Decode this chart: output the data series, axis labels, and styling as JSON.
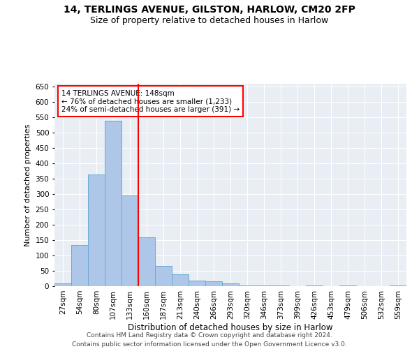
{
  "title1": "14, TERLINGS AVENUE, GILSTON, HARLOW, CM20 2FP",
  "title2": "Size of property relative to detached houses in Harlow",
  "xlabel": "Distribution of detached houses by size in Harlow",
  "ylabel": "Number of detached properties",
  "categories": [
    "27sqm",
    "54sqm",
    "80sqm",
    "107sqm",
    "133sqm",
    "160sqm",
    "187sqm",
    "213sqm",
    "240sqm",
    "266sqm",
    "293sqm",
    "320sqm",
    "346sqm",
    "373sqm",
    "399sqm",
    "426sqm",
    "453sqm",
    "479sqm",
    "506sqm",
    "532sqm",
    "559sqm"
  ],
  "values": [
    10,
    135,
    365,
    540,
    295,
    160,
    65,
    38,
    18,
    15,
    10,
    3,
    3,
    3,
    0,
    3,
    0,
    3,
    0,
    0,
    3
  ],
  "bar_color": "#aec6e8",
  "bar_edge_color": "#6aaad4",
  "vline_color": "red",
  "vline_x": 4.5,
  "annotation_text": "14 TERLINGS AVENUE: 148sqm\n← 76% of detached houses are smaller (1,233)\n24% of semi-detached houses are larger (391) →",
  "annotation_box_color": "white",
  "annotation_box_edge_color": "red",
  "ylim": [
    0,
    660
  ],
  "yticks": [
    0,
    50,
    100,
    150,
    200,
    250,
    300,
    350,
    400,
    450,
    500,
    550,
    600,
    650
  ],
  "background_color": "#e8eef4",
  "footer_text": "Contains HM Land Registry data © Crown copyright and database right 2024.\nContains public sector information licensed under the Open Government Licence v3.0.",
  "title1_fontsize": 10,
  "title2_fontsize": 9,
  "xlabel_fontsize": 8.5,
  "ylabel_fontsize": 8,
  "tick_fontsize": 7.5,
  "annotation_fontsize": 7.5,
  "footer_fontsize": 6.5
}
